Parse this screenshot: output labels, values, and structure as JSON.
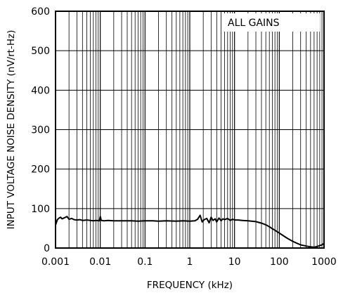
{
  "chart_data": {
    "type": "line",
    "title": "",
    "xlabel": "FREQUENCY (kHz)",
    "ylabel": "INPUT VOLTAGE NOISE DENSITY (nV/rt-Hz)",
    "x_scale": "log",
    "xlim": [
      0.001,
      1000
    ],
    "ylim": [
      0,
      600
    ],
    "x_ticks": [
      0.001,
      0.01,
      0.1,
      1,
      10,
      100,
      1000
    ],
    "x_tick_labels": [
      "0.001",
      "0.01",
      "0.1",
      "1",
      "10",
      "100",
      "1000"
    ],
    "y_ticks": [
      0,
      100,
      200,
      300,
      400,
      500,
      600
    ],
    "y_tick_labels": [
      "0",
      "100",
      "200",
      "300",
      "400",
      "500",
      "600"
    ],
    "grid": true,
    "annotation": "ALL GAINS",
    "annotation_position": "top-right",
    "series": [
      {
        "color": "#000000",
        "x": [
          0.001,
          0.0011,
          0.0012,
          0.0013,
          0.0014,
          0.0016,
          0.0018,
          0.002,
          0.0023,
          0.0026,
          0.003,
          0.0035,
          0.004,
          0.005,
          0.006,
          0.007,
          0.008,
          0.0095,
          0.01,
          0.0105,
          0.012,
          0.015,
          0.02,
          0.03,
          0.05,
          0.07,
          0.1,
          0.15,
          0.2,
          0.3,
          0.5,
          0.7,
          1.0,
          1.3,
          1.5,
          1.7,
          1.9,
          2.1,
          2.4,
          2.7,
          3.0,
          3.3,
          3.7,
          4.0,
          4.5,
          5.0,
          5.5,
          6.0,
          7.0,
          8.0,
          9.0,
          10,
          12,
          15,
          20,
          30,
          40,
          50,
          60,
          70,
          80,
          100,
          120,
          150,
          200,
          250,
          300,
          400,
          500,
          600,
          700,
          800,
          900,
          1000
        ],
        "y": [
          58,
          72,
          76,
          78,
          74,
          77,
          80,
          73,
          75,
          72,
          71,
          72,
          70,
          71,
          70,
          69,
          70,
          69,
          80,
          70,
          69,
          70,
          69,
          69,
          69,
          68,
          69,
          69,
          68,
          69,
          68,
          69,
          68,
          69,
          73,
          83,
          66,
          72,
          75,
          64,
          78,
          70,
          74,
          66,
          76,
          69,
          74,
          72,
          75,
          70,
          73,
          71,
          71,
          70,
          69,
          67,
          63,
          59,
          54,
          49,
          45,
          38,
          32,
          25,
          17,
          12,
          8,
          5,
          3,
          2,
          4,
          6,
          8,
          12
        ]
      }
    ]
  }
}
